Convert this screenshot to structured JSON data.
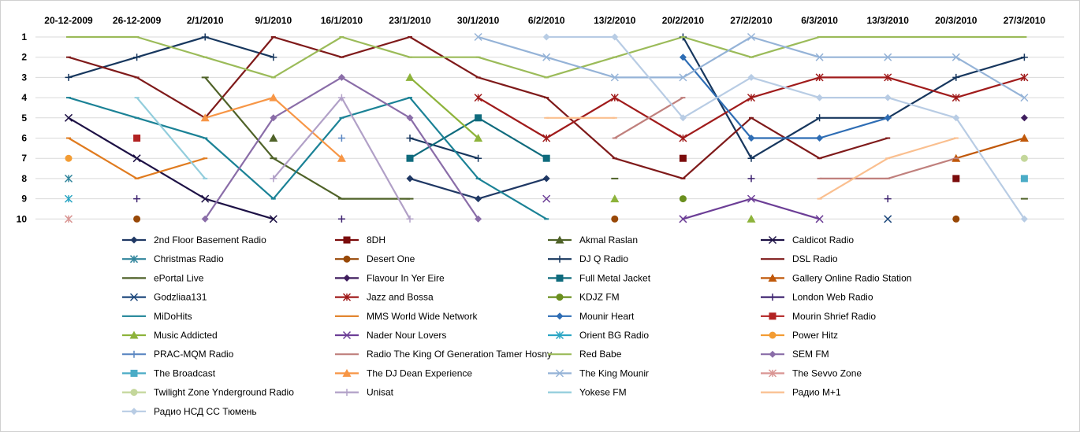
{
  "chart_data": {
    "type": "line",
    "title": "",
    "xlabel": "",
    "ylabel": "",
    "x": [
      "20-12-2009",
      "26-12-2009",
      "2/1/2010",
      "9/1/2010",
      "16/1/2010",
      "23/1/2010",
      "30/1/2010",
      "6/2/2010",
      "13/2/2010",
      "20/2/2010",
      "27/2/2010",
      "6/3/2010",
      "13/3/2010",
      "20/3/2010",
      "27/3/2010"
    ],
    "y_ticks": [
      "1",
      "2",
      "3",
      "4",
      "5",
      "6",
      "7",
      "8",
      "9",
      "10"
    ],
    "ylim": [
      1,
      10
    ],
    "y_inverted": true,
    "grid": "horizontal",
    "legend_position": "bottom",
    "series": [
      {
        "name": "2nd Floor Basement  Radio",
        "color": "#1F3864",
        "marker": "diamond",
        "values": [
          null,
          null,
          null,
          null,
          null,
          8,
          9,
          8,
          null,
          null,
          null,
          null,
          null,
          null,
          null
        ]
      },
      {
        "name": "8DH",
        "color": "#7B0C0C",
        "marker": "square",
        "values": [
          null,
          null,
          null,
          null,
          null,
          null,
          null,
          null,
          null,
          7,
          null,
          null,
          null,
          8,
          null
        ]
      },
      {
        "name": "Akmal Raslan",
        "color": "#4F6228",
        "marker": "triangle",
        "values": [
          null,
          null,
          null,
          6,
          null,
          null,
          null,
          null,
          null,
          null,
          null,
          null,
          null,
          null,
          null
        ]
      },
      {
        "name": "Caldicot Radio",
        "color": "#1D1145",
        "marker": "x",
        "values": [
          5,
          7,
          9,
          10,
          null,
          null,
          null,
          null,
          null,
          null,
          null,
          null,
          null,
          null,
          null
        ]
      },
      {
        "name": "Christmas Radio",
        "color": "#31859C",
        "marker": "asterisk",
        "values": [
          8,
          null,
          null,
          null,
          null,
          null,
          null,
          null,
          null,
          null,
          null,
          null,
          null,
          null,
          null
        ]
      },
      {
        "name": "Desert One",
        "color": "#984807",
        "marker": "circle",
        "values": [
          null,
          10,
          null,
          null,
          null,
          null,
          null,
          null,
          10,
          null,
          null,
          null,
          null,
          10,
          null
        ]
      },
      {
        "name": "DJ Q Radio",
        "color": "#17375E",
        "marker": "plus",
        "values": [
          3,
          2,
          1,
          2,
          null,
          6,
          7,
          null,
          null,
          1,
          7,
          5,
          5,
          3,
          2
        ]
      },
      {
        "name": "DSL Radio",
        "color": "#7F1A1A",
        "marker": "none",
        "values": [
          2,
          3,
          5,
          1,
          2,
          1,
          3,
          4,
          7,
          8,
          5,
          7,
          6,
          null,
          null
        ]
      },
      {
        "name": "ePortal Live",
        "color": "#4F6228",
        "marker": "dash",
        "values": [
          null,
          null,
          3,
          7,
          9,
          9,
          null,
          null,
          8,
          null,
          null,
          null,
          null,
          null,
          9
        ]
      },
      {
        "name": "Flavour In Yer Eire",
        "color": "#3F1D5E",
        "marker": "diamond",
        "values": [
          null,
          null,
          null,
          null,
          null,
          null,
          null,
          null,
          null,
          null,
          null,
          null,
          null,
          null,
          5
        ]
      },
      {
        "name": "Full Metal Jacket",
        "color": "#0F6B7D",
        "marker": "square",
        "values": [
          null,
          null,
          null,
          null,
          null,
          7,
          5,
          7,
          null,
          null,
          null,
          null,
          null,
          null,
          null
        ]
      },
      {
        "name": "Gallery Online Radio Station",
        "color": "#C0580A",
        "marker": "triangle",
        "values": [
          null,
          null,
          null,
          null,
          null,
          null,
          null,
          null,
          null,
          null,
          null,
          null,
          null,
          7,
          6
        ]
      },
      {
        "name": "Godzliaa131",
        "color": "#1F497D",
        "marker": "x",
        "values": [
          null,
          null,
          null,
          null,
          null,
          null,
          null,
          null,
          null,
          null,
          null,
          null,
          10,
          null,
          null
        ]
      },
      {
        "name": "Jazz and Bossa",
        "color": "#A01B1B",
        "marker": "asterisk",
        "values": [
          null,
          null,
          null,
          null,
          null,
          null,
          4,
          6,
          4,
          6,
          4,
          3,
          3,
          4,
          3
        ]
      },
      {
        "name": "KDJZ FM",
        "color": "#6A8F1E",
        "marker": "circle",
        "values": [
          null,
          null,
          null,
          null,
          null,
          null,
          null,
          null,
          null,
          9,
          null,
          null,
          null,
          null,
          null
        ]
      },
      {
        "name": "London Web Radio",
        "color": "#3F2470",
        "marker": "plus",
        "values": [
          null,
          9,
          null,
          null,
          10,
          null,
          null,
          null,
          null,
          null,
          8,
          null,
          9,
          null,
          null
        ]
      },
      {
        "name": "MiDoHits",
        "color": "#1B8296",
        "marker": "none",
        "values": [
          4,
          5,
          6,
          9,
          5,
          4,
          8,
          10,
          null,
          null,
          null,
          null,
          null,
          null,
          null
        ]
      },
      {
        "name": "MMS World Wide Network",
        "color": "#E07B1F",
        "marker": "none",
        "values": [
          6,
          8,
          7,
          null,
          null,
          null,
          null,
          null,
          null,
          null,
          null,
          null,
          null,
          null,
          null
        ]
      },
      {
        "name": "Mounir Heart",
        "color": "#2E6DB4",
        "marker": "diamond",
        "values": [
          null,
          null,
          null,
          null,
          null,
          null,
          null,
          null,
          null,
          2,
          6,
          6,
          5,
          null,
          null
        ]
      },
      {
        "name": "Mourin Shrief Radio",
        "color": "#B22222",
        "marker": "square",
        "values": [
          null,
          6,
          null,
          null,
          null,
          null,
          null,
          null,
          null,
          null,
          null,
          null,
          null,
          null,
          null
        ]
      },
      {
        "name": "Music Addicted",
        "color": "#8DB33A",
        "marker": "triangle",
        "values": [
          null,
          null,
          null,
          null,
          null,
          3,
          6,
          null,
          9,
          null,
          10,
          null,
          null,
          null,
          null
        ]
      },
      {
        "name": "Nader Nour  Lovers",
        "color": "#6C3E96",
        "marker": "x",
        "values": [
          null,
          null,
          null,
          null,
          null,
          null,
          null,
          9,
          null,
          10,
          9,
          10,
          null,
          null,
          null
        ]
      },
      {
        "name": "Orient BG Radio",
        "color": "#2BA6C4",
        "marker": "asterisk",
        "values": [
          9,
          null,
          null,
          null,
          null,
          null,
          null,
          null,
          null,
          null,
          null,
          null,
          null,
          null,
          null
        ]
      },
      {
        "name": "Power Hitz",
        "color": "#F39C33",
        "marker": "circle",
        "values": [
          7,
          null,
          null,
          null,
          null,
          null,
          null,
          null,
          null,
          null,
          null,
          null,
          null,
          null,
          null
        ]
      },
      {
        "name": "PRAC-MQM Radio",
        "color": "#5B87C2",
        "marker": "plus",
        "values": [
          null,
          null,
          null,
          null,
          6,
          null,
          null,
          null,
          null,
          null,
          null,
          null,
          null,
          null,
          null
        ]
      },
      {
        "name": "Radio The King Of Generation Tamer  Hosny",
        "color": "#C0807D",
        "marker": "none",
        "values": [
          null,
          null,
          null,
          null,
          null,
          null,
          null,
          null,
          6,
          4,
          null,
          8,
          8,
          7,
          null
        ]
      },
      {
        "name": "Red Babe",
        "color": "#9BBB59",
        "marker": "none",
        "values": [
          1,
          1,
          2,
          3,
          1,
          2,
          2,
          3,
          2,
          1,
          2,
          1,
          1,
          1,
          1
        ]
      },
      {
        "name": "SEM FM",
        "color": "#8A6DA8",
        "marker": "diamond",
        "values": [
          null,
          null,
          10,
          5,
          3,
          5,
          10,
          null,
          null,
          null,
          null,
          null,
          null,
          null,
          null
        ]
      },
      {
        "name": "The Broadcast",
        "color": "#4BACC6",
        "marker": "square",
        "values": [
          null,
          null,
          null,
          null,
          null,
          null,
          null,
          null,
          null,
          null,
          null,
          null,
          null,
          null,
          8
        ]
      },
      {
        "name": "The DJ  Dean Experience",
        "color": "#F79646",
        "marker": "triangle",
        "values": [
          null,
          null,
          5,
          4,
          7,
          null,
          null,
          null,
          null,
          null,
          null,
          null,
          null,
          null,
          null
        ]
      },
      {
        "name": "The King Mounir",
        "color": "#95B3D7",
        "marker": "x",
        "values": [
          null,
          null,
          null,
          null,
          null,
          null,
          1,
          2,
          3,
          3,
          1,
          2,
          2,
          2,
          4
        ]
      },
      {
        "name": "The Sevvo Zone",
        "color": "#DA9694",
        "marker": "asterisk",
        "values": [
          10,
          null,
          null,
          null,
          null,
          null,
          null,
          null,
          null,
          null,
          null,
          null,
          null,
          null,
          null
        ]
      },
      {
        "name": "Twilight Zone Ynderground Radio",
        "color": "#C4D79B",
        "marker": "circle",
        "values": [
          null,
          null,
          null,
          null,
          null,
          null,
          null,
          null,
          null,
          null,
          null,
          null,
          null,
          null,
          7
        ]
      },
      {
        "name": "Unisat",
        "color": "#B1A0C7",
        "marker": "plus",
        "values": [
          null,
          null,
          null,
          8,
          4,
          10,
          null,
          null,
          null,
          null,
          null,
          null,
          null,
          null,
          null
        ]
      },
      {
        "name": "Yokese FM",
        "color": "#92CDDC",
        "marker": "none",
        "values": [
          null,
          4,
          8,
          null,
          null,
          null,
          null,
          null,
          null,
          null,
          null,
          null,
          null,
          null,
          null
        ]
      },
      {
        "name": "Радио М+1",
        "color": "#FABF8F",
        "marker": "none",
        "values": [
          null,
          null,
          null,
          null,
          null,
          null,
          null,
          5,
          5,
          null,
          null,
          9,
          7,
          6,
          null
        ]
      },
      {
        "name": "Радио НСД СС Тюмень",
        "color": "#B8CCE4",
        "marker": "diamond",
        "values": [
          null,
          null,
          null,
          null,
          null,
          null,
          null,
          1,
          1,
          5,
          3,
          4,
          4,
          5,
          10
        ]
      }
    ]
  }
}
